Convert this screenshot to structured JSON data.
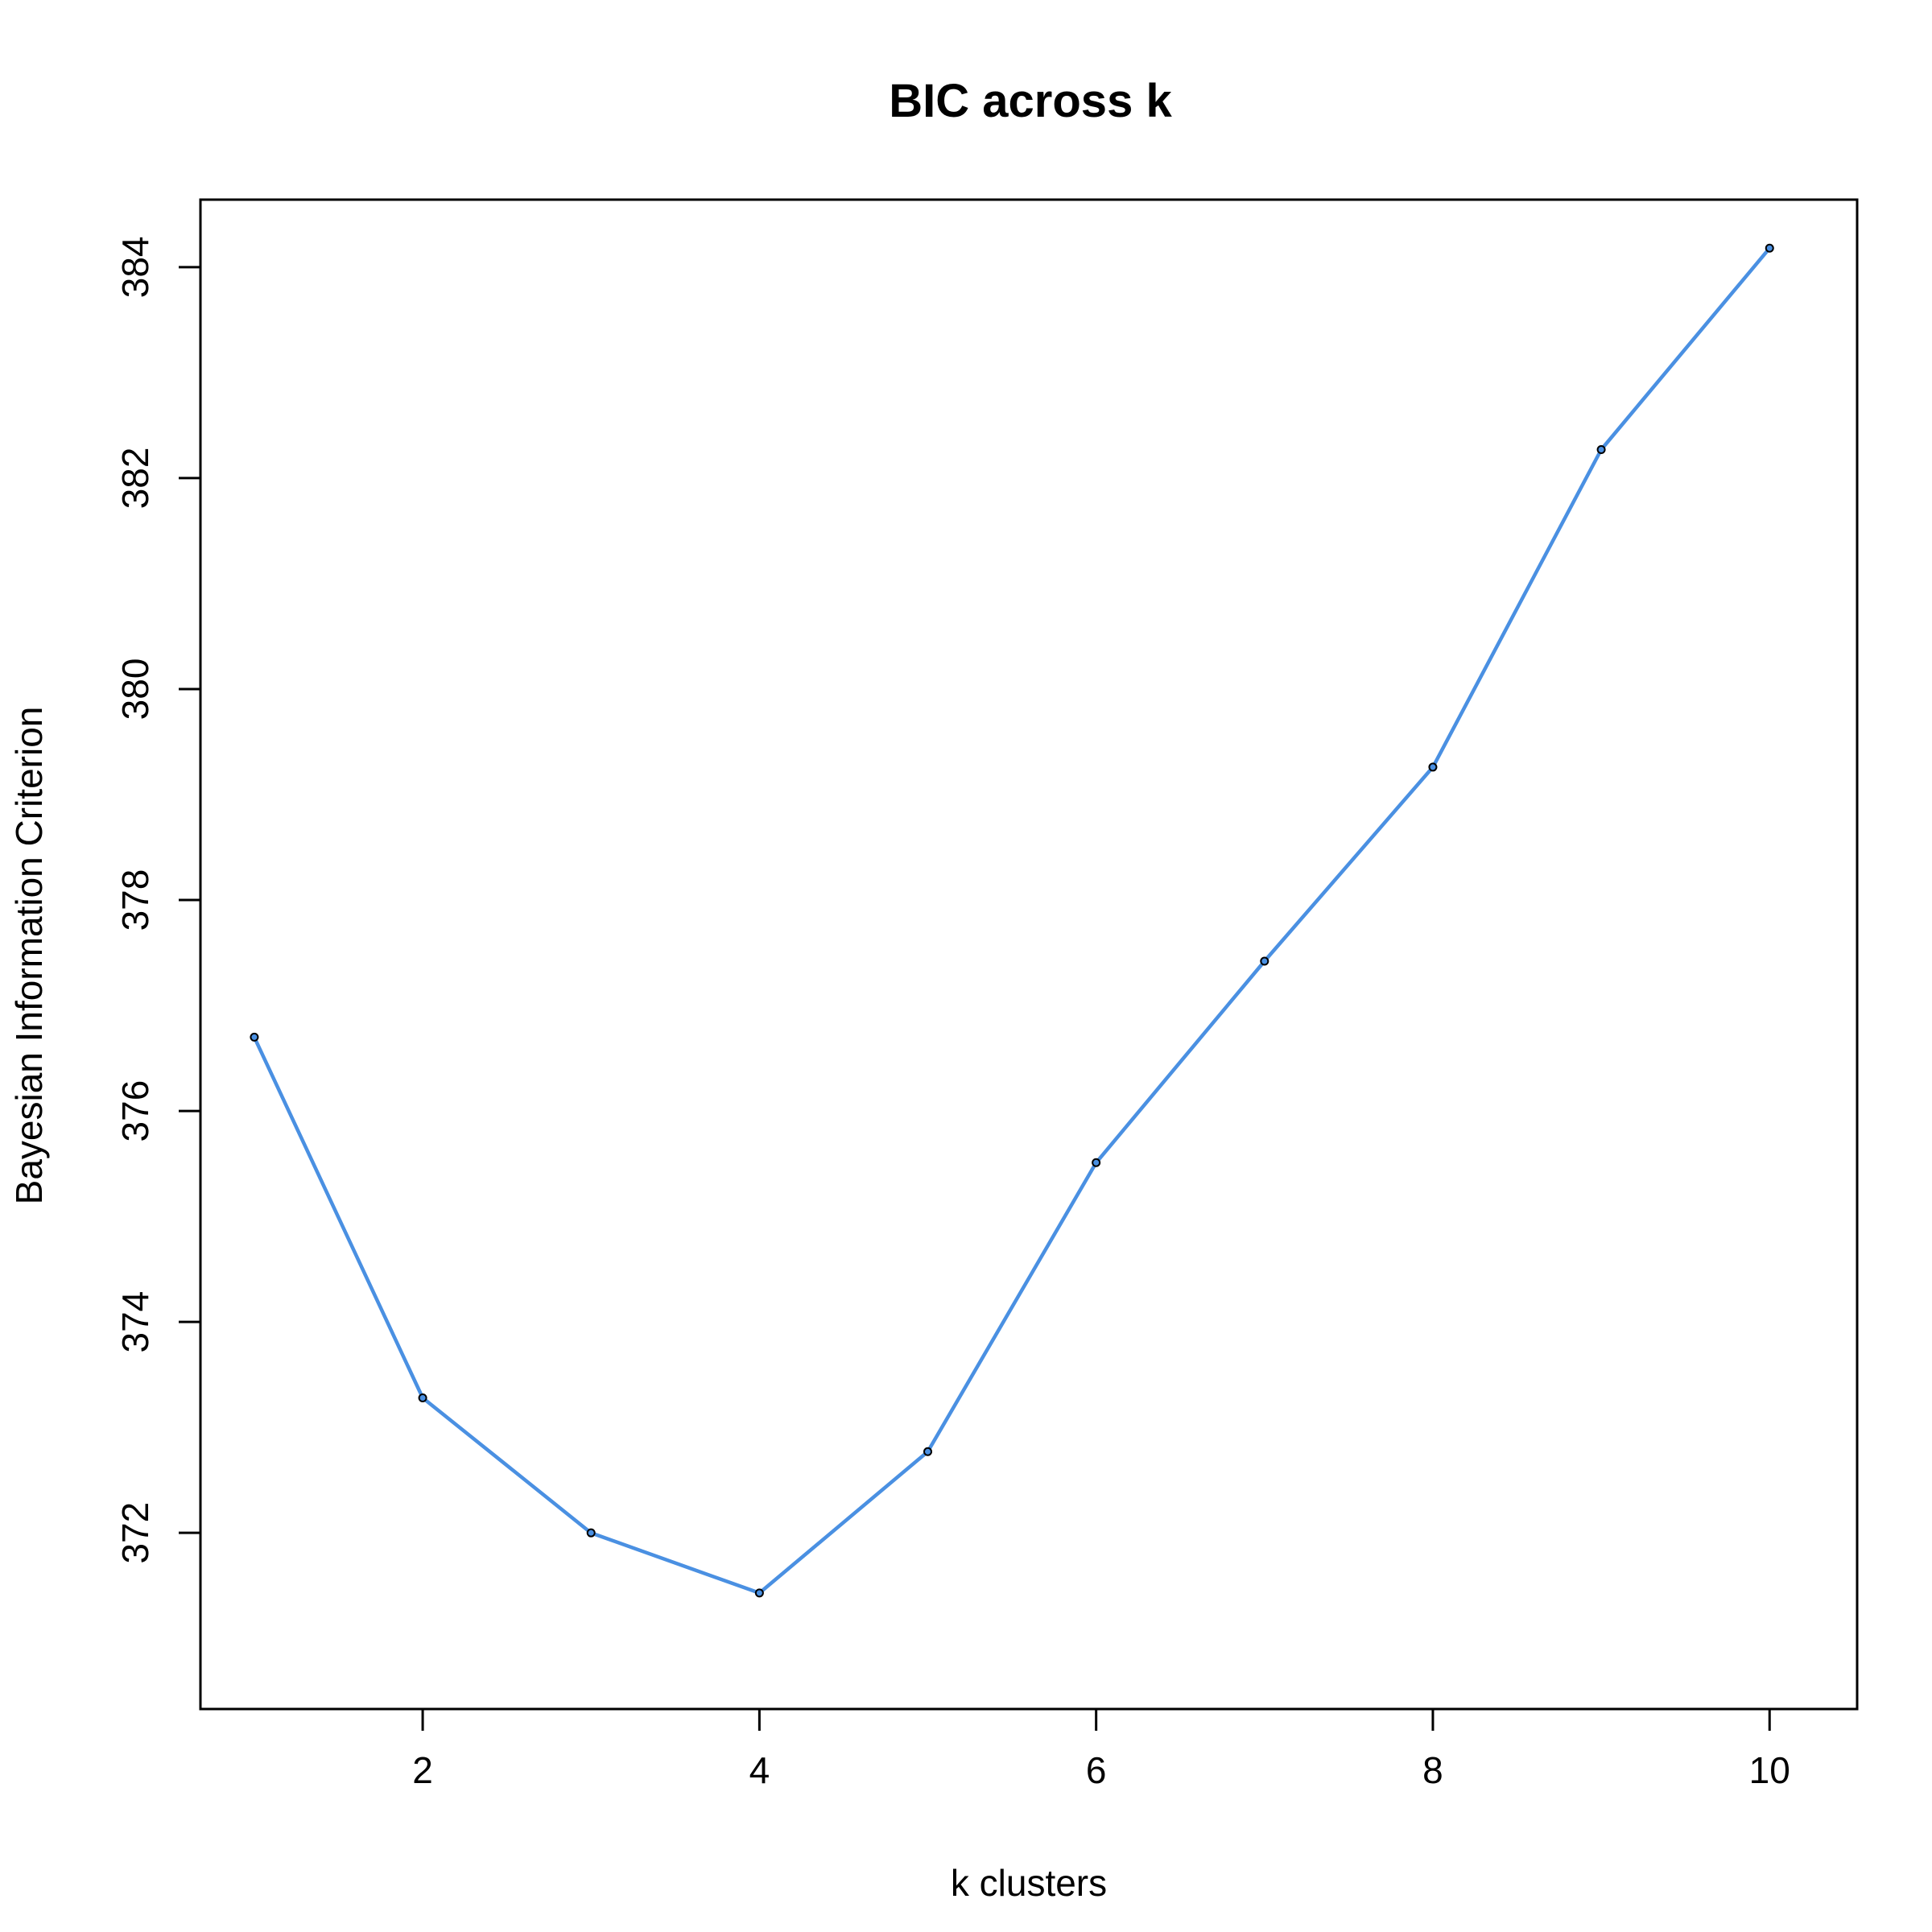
{
  "chart_data": {
    "type": "line",
    "title": "BIC across k",
    "xlabel": "k clusters",
    "ylabel": "Bayesian Information Criterion",
    "x": [
      1,
      2,
      3,
      4,
      5,
      6,
      7,
      8,
      9,
      10
    ],
    "series": [
      {
        "values": [
          376.7,
          373.28,
          372.0,
          371.43,
          372.77,
          375.51,
          377.42,
          379.26,
          382.27,
          384.18
        ],
        "color": "#4a90e2",
        "marker_color": "#000000"
      }
    ],
    "xlim": [
      0.68,
      10.52
    ],
    "ylim": [
      370.33,
      384.64
    ],
    "xticks": [
      2,
      4,
      6,
      8,
      10
    ],
    "yticks": [
      372,
      374,
      376,
      378,
      380,
      382,
      384
    ],
    "grid": false,
    "legend": "none"
  }
}
